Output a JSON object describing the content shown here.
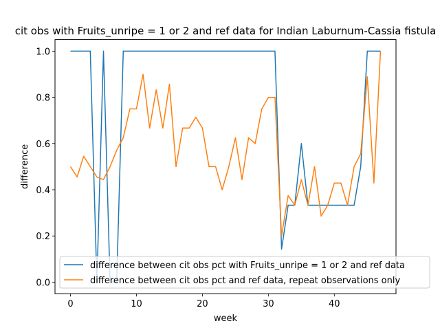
{
  "chart_data": {
    "type": "line",
    "title": "cit obs with Fruits_unripe = 1 or 2 and ref data for Indian Laburnum-Cassia fistula",
    "xlabel": "week",
    "ylabel": "difference",
    "xlim": [
      -2.35,
      49.35
    ],
    "ylim": [
      -0.05,
      1.05
    ],
    "xticks": [
      0,
      10,
      20,
      30,
      40
    ],
    "yticks": [
      0.0,
      0.2,
      0.4,
      0.6,
      0.8,
      1.0
    ],
    "xtick_labels": [
      "0",
      "10",
      "20",
      "30",
      "40"
    ],
    "ytick_labels": [
      "0.0",
      "0.2",
      "0.4",
      "0.6",
      "0.8",
      "1.0"
    ],
    "grid": false,
    "legend_position": "lower-right",
    "series": [
      {
        "name": "difference between cit obs pct with Fruits_unripe = 1 or 2 and ref data",
        "color": "#1f77b4",
        "x": [
          0,
          1,
          2,
          3,
          4,
          5,
          6,
          7,
          8,
          9,
          10,
          11,
          12,
          13,
          14,
          15,
          16,
          17,
          18,
          19,
          20,
          21,
          22,
          23,
          24,
          25,
          26,
          27,
          28,
          29,
          30,
          31,
          32,
          33,
          34,
          35,
          36,
          37,
          38,
          39,
          40,
          41,
          42,
          43,
          44,
          45,
          46,
          47
        ],
        "y": [
          1,
          1,
          1,
          1,
          0,
          1,
          0,
          0,
          1,
          1,
          1,
          1,
          1,
          1,
          1,
          1,
          1,
          1,
          1,
          1,
          1,
          1,
          1,
          1,
          1,
          1,
          1,
          1,
          1,
          1,
          1,
          1,
          0.143,
          0.333,
          0.333,
          0.6,
          0.333,
          0.333,
          0.333,
          0.333,
          0.333,
          0.333,
          0.333,
          0.333,
          0.5,
          1,
          1,
          1
        ]
      },
      {
        "name": "difference between cit obs pct and ref data, repeat observations only",
        "color": "#ff7f0e",
        "x": [
          0,
          1,
          2,
          3,
          4,
          5,
          6,
          7,
          8,
          9,
          10,
          11,
          12,
          13,
          14,
          15,
          16,
          17,
          18,
          19,
          20,
          21,
          22,
          23,
          24,
          25,
          26,
          27,
          28,
          29,
          30,
          31,
          32,
          33,
          34,
          35,
          36,
          37,
          38,
          39,
          40,
          41,
          42,
          43,
          44,
          45,
          46,
          47
        ],
        "y": [
          0.5,
          0.455,
          0.545,
          0.5,
          0.455,
          0.444,
          0.5,
          0.571,
          0.625,
          0.75,
          0.75,
          0.9,
          0.667,
          0.833,
          0.667,
          0.857,
          0.5,
          0.667,
          0.667,
          0.714,
          0.667,
          0.5,
          0.5,
          0.4,
          0.5,
          0.625,
          0.444,
          0.625,
          0.6,
          0.75,
          0.8,
          0.8,
          0.2,
          0.375,
          0.333,
          0.444,
          0.333,
          0.5,
          0.286,
          0.333,
          0.429,
          0.429,
          0.333,
          0.5,
          0.556,
          0.889,
          0.429,
          1
        ]
      }
    ]
  }
}
